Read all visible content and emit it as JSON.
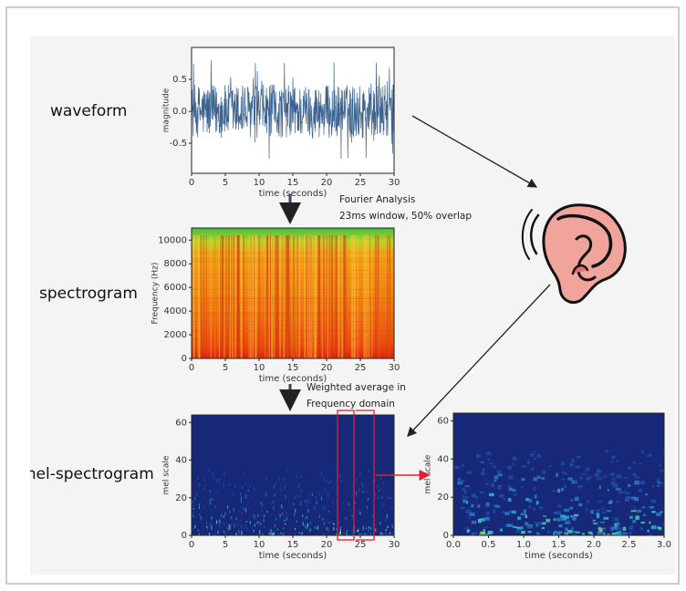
{
  "labels": {
    "waveform": "waveform",
    "spectrogram": "spectrogram",
    "mel_spectrogram": "mel-spectrogram"
  },
  "annotations": {
    "fourier": [
      "Fourier Analysis",
      "23ms window, 50% overlap"
    ],
    "weighted": [
      "Weighted average in",
      "Frequency domain"
    ]
  },
  "plots": [
    {
      "xlabel": "time (seconds)",
      "ylabel": "magnitude",
      "xlim": [
        0,
        30
      ],
      "xticks": [
        0,
        5,
        10,
        15,
        20,
        25,
        30
      ],
      "ylim": [
        -0.97,
        1.0
      ],
      "yticks": [
        0.5,
        {
          "value": 0,
          "label": "0.0"
        },
        -0.5
      ]
    },
    {
      "xlabel": "time (seconds)",
      "ylabel": "Frequency (Hz)",
      "xlim": [
        0,
        30
      ],
      "xticks": [
        0,
        5,
        10,
        15,
        20,
        25,
        30
      ],
      "ylim": [
        0,
        11025
      ],
      "yticks": [
        0,
        2000,
        4000,
        6000,
        8000,
        10000
      ]
    },
    {
      "xlabel": "time (seconds)",
      "ylabel": "mel scale",
      "xlim": [
        0,
        30
      ],
      "xticks": [
        0,
        5,
        10,
        15,
        20,
        25,
        30
      ],
      "ylim": [
        0,
        64
      ],
      "yticks": [
        0,
        20,
        40,
        60
      ]
    },
    {
      "xlabel": "time (seconds)",
      "ylabel": "mel scale",
      "xlim": [
        0,
        3
      ],
      "xticks": [
        {
          "value": 0,
          "label": "0.0"
        },
        0.5,
        {
          "value": 1,
          "label": "1.0"
        },
        1.5,
        {
          "value": 2,
          "label": "2.0"
        },
        2.5,
        {
          "value": 3,
          "label": "3.0"
        }
      ],
      "ylim": [
        0,
        64
      ],
      "yticks": [
        0,
        20,
        40,
        60
      ]
    }
  ]
}
